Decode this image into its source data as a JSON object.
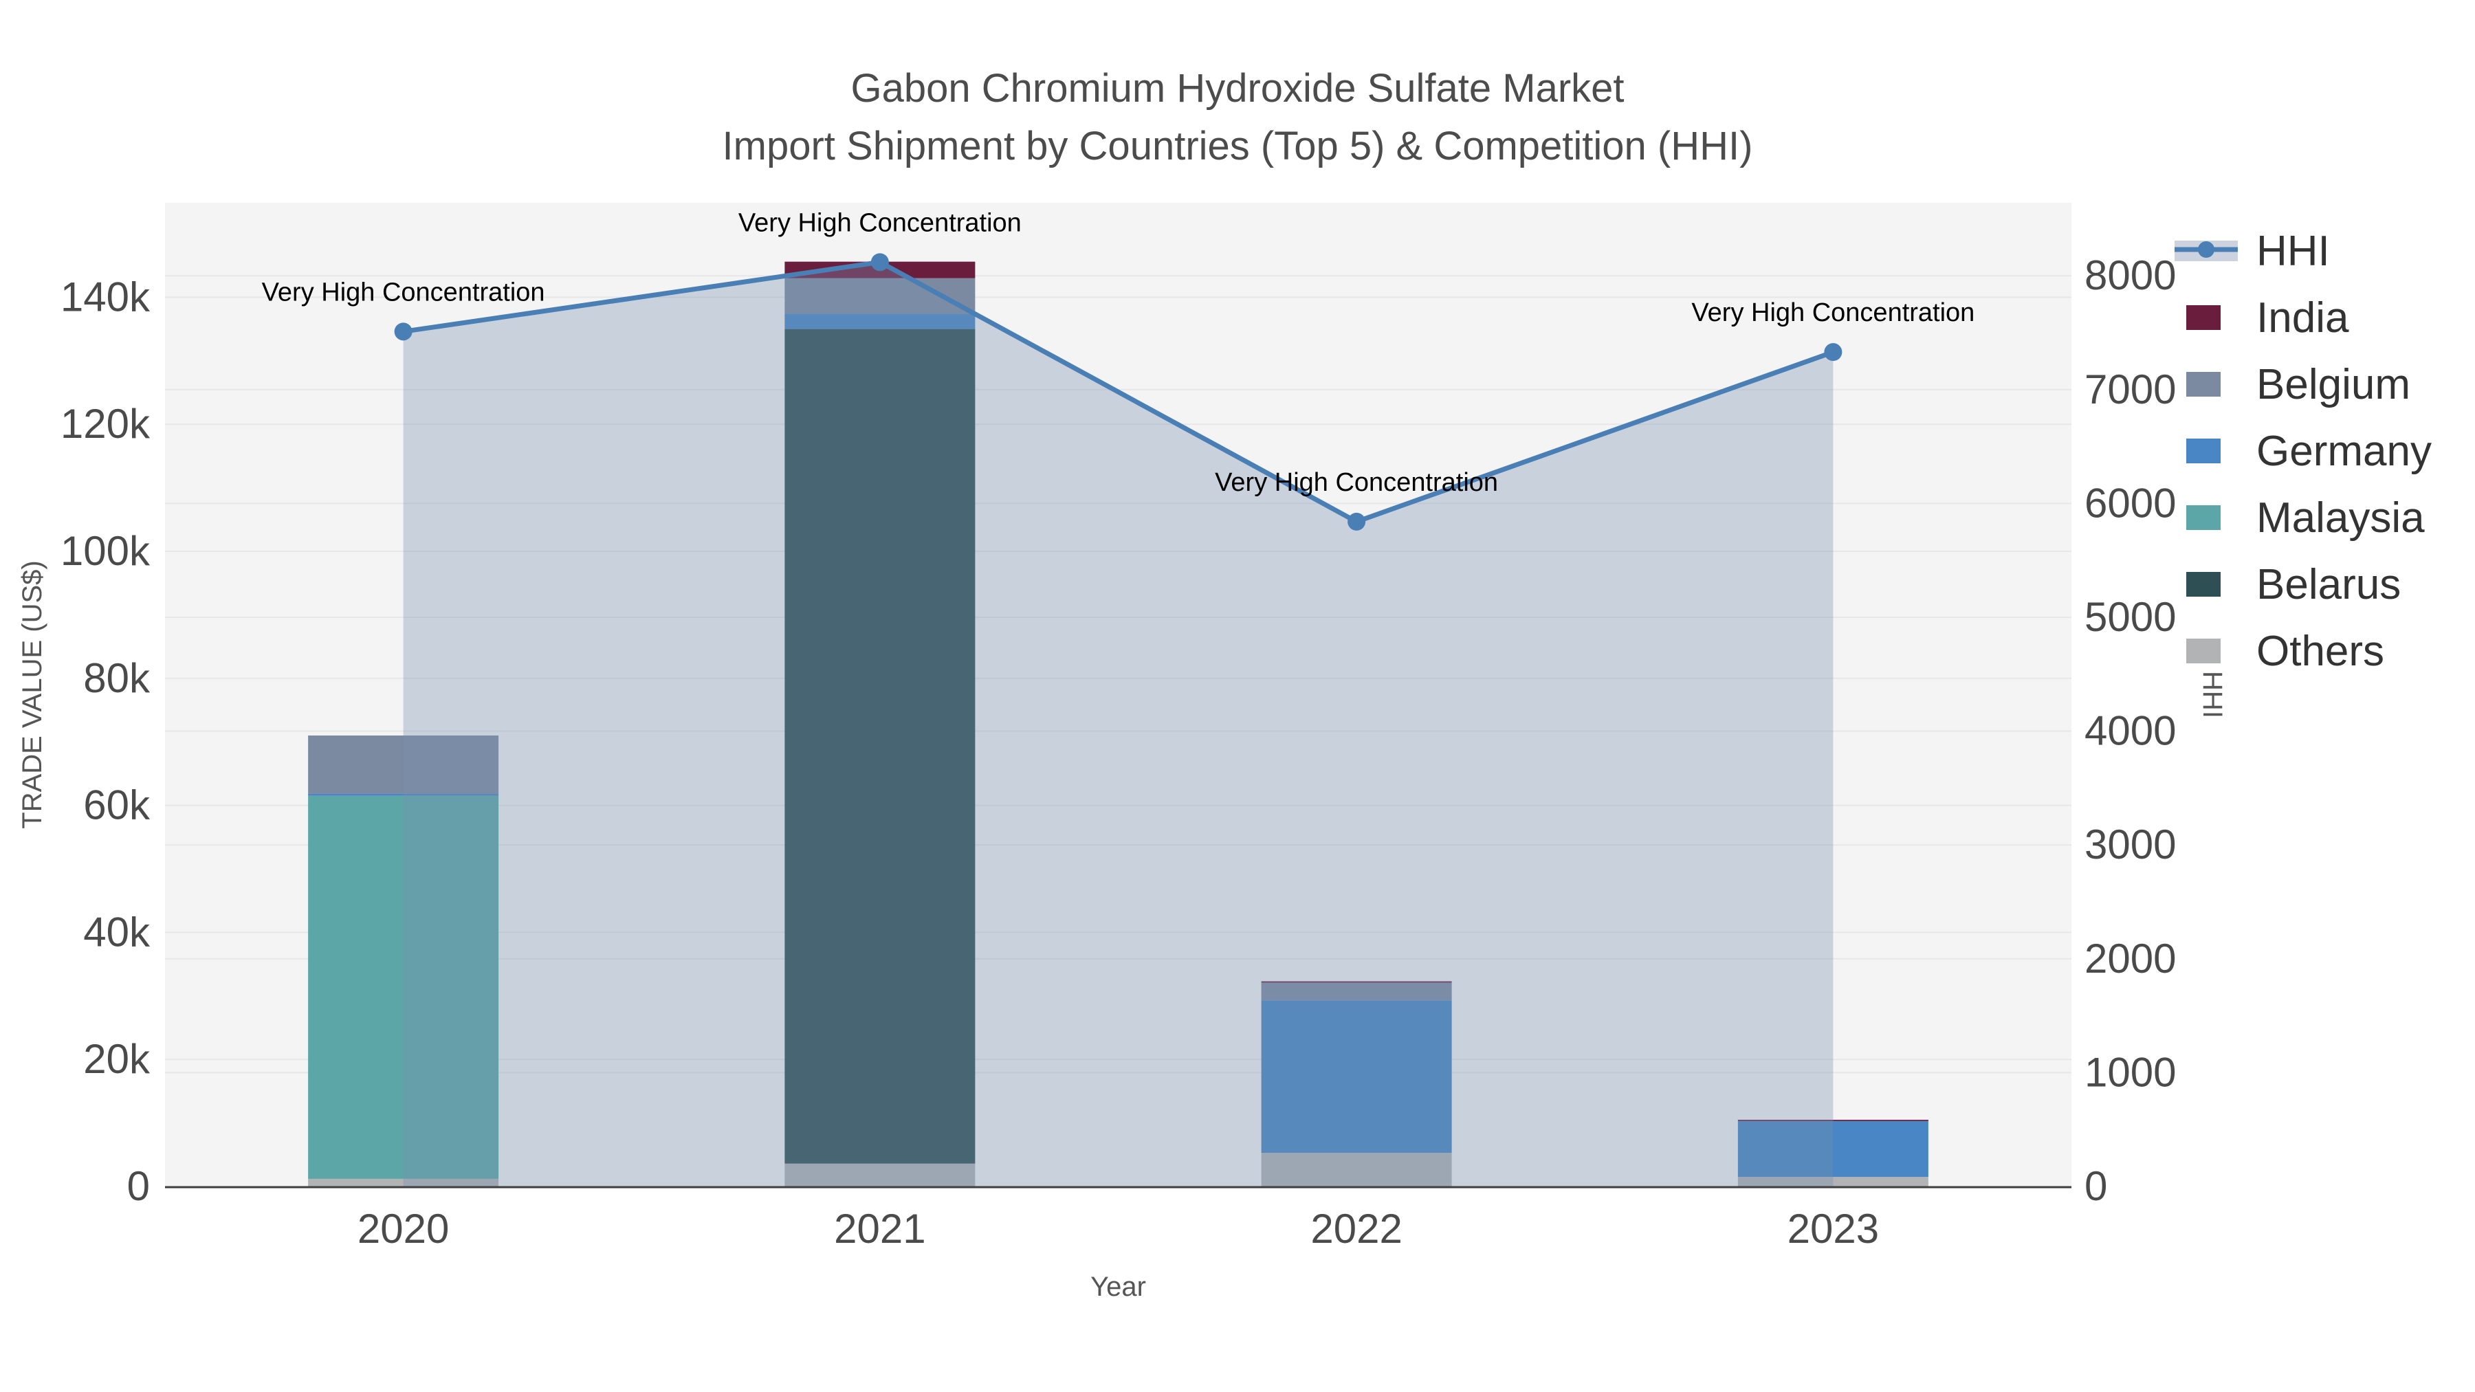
{
  "title": {
    "line1": "Gabon Chromium Hydroxide Sulfate Market",
    "line2": "Import Shipment by Countries (Top 5) & Competition (HHI)"
  },
  "axes": {
    "x": {
      "title": "Year",
      "tick_labels": [
        "2020",
        "2021",
        "2022",
        "2023"
      ]
    },
    "y_left": {
      "title": "TRADE VALUE (US$)",
      "tick_labels": [
        "0",
        "20k",
        "40k",
        "60k",
        "80k",
        "100k",
        "120k",
        "140k"
      ],
      "tick_values": [
        0,
        20000,
        40000,
        60000,
        80000,
        100000,
        120000,
        140000
      ],
      "range": [
        0,
        154800
      ]
    },
    "y_right": {
      "title": "HHI",
      "tick_labels": [
        "0",
        "1000",
        "2000",
        "3000",
        "4000",
        "5000",
        "6000",
        "7000",
        "8000"
      ],
      "tick_values": [
        0,
        1000,
        2000,
        3000,
        4000,
        5000,
        6000,
        7000,
        8000
      ],
      "range": [
        0,
        8640
      ]
    }
  },
  "chart_data": {
    "type": "combo-stacked-bar-line",
    "categories": [
      "2020",
      "2021",
      "2022",
      "2023"
    ],
    "bar_series_stack_bottom_to_top": [
      {
        "name": "Others",
        "color": "#b1b3b5",
        "values": [
          1200,
          3600,
          5300,
          1500
        ]
      },
      {
        "name": "Belarus",
        "color": "#2e4f53",
        "values": [
          0,
          131400,
          0,
          0
        ]
      },
      {
        "name": "Malaysia",
        "color": "#5da6a8",
        "values": [
          60300,
          0,
          0,
          0
        ]
      },
      {
        "name": "Germany",
        "color": "#4886c5",
        "values": [
          300,
          2400,
          24000,
          8800
        ]
      },
      {
        "name": "Belgium",
        "color": "#7b8aa1",
        "values": [
          9200,
          5600,
          2800,
          0
        ]
      },
      {
        "name": "India",
        "color": "#6a1d3d",
        "values": [
          0,
          2600,
          200,
          200
        ]
      }
    ],
    "line_series": {
      "name": "HHI",
      "color": "#4a7fb5",
      "area_fill": "rgba(119,142,174,0.35)",
      "values": [
        7510,
        8120,
        5840,
        7330
      ]
    },
    "annotations": [
      {
        "text": "Very High Concentration",
        "point_index": 0
      },
      {
        "text": "Very High Concentration",
        "point_index": 1
      },
      {
        "text": "Very High Concentration",
        "point_index": 2
      },
      {
        "text": "Very High Concentration",
        "point_index": 3
      }
    ],
    "ylabel_left": "TRADE VALUE (US$)",
    "ylabel_right": "HHI",
    "xlabel": "Year",
    "grid": true,
    "legend_position": "right"
  },
  "legend": {
    "items": [
      {
        "label": "HHI",
        "type": "line",
        "color": "#4a7fb5",
        "band_color": "#ccd3de"
      },
      {
        "label": "India",
        "type": "swatch",
        "color": "#6a1d3d"
      },
      {
        "label": "Belgium",
        "type": "swatch",
        "color": "#7b8aa1"
      },
      {
        "label": "Germany",
        "type": "swatch",
        "color": "#4886c5"
      },
      {
        "label": "Malaysia",
        "type": "swatch",
        "color": "#5da6a8"
      },
      {
        "label": "Belarus",
        "type": "swatch",
        "color": "#2e4f53"
      },
      {
        "label": "Others",
        "type": "swatch",
        "color": "#b1b3b5"
      }
    ]
  },
  "colors": {
    "plot_background": "#f4f4f5",
    "gridline": "#e7e7e9",
    "axis_line": "#3f3f3f",
    "title_text": "#4c4c4c",
    "tick_text": "#4a4a4a",
    "axis_title_text": "#555555",
    "annotation_text": "#000000"
  }
}
